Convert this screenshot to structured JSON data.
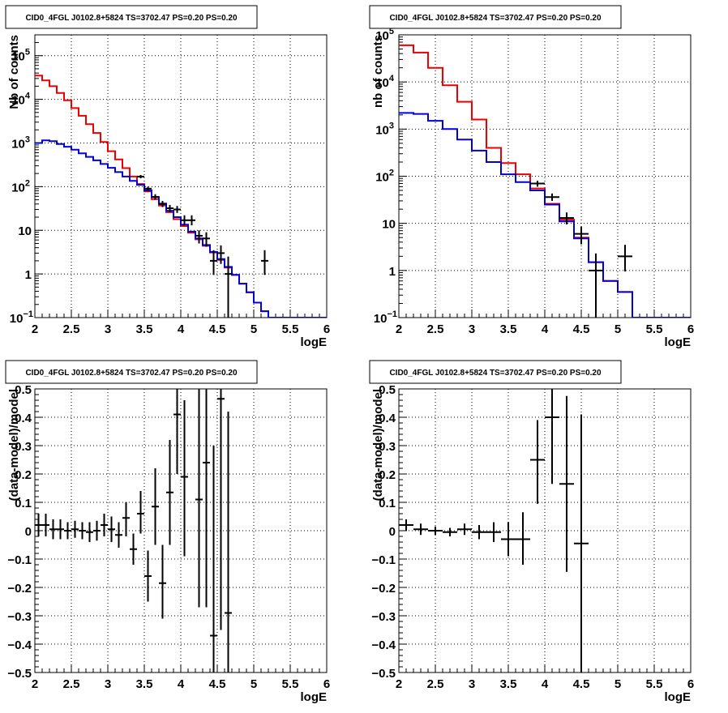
{
  "chart_data": [
    {
      "type": "line",
      "title": "CID0_4FGL J0102.8+5824 TS=3702.47 PS=0.20 PS=0.20",
      "xlabel": "logE",
      "ylabel": "Nb of counts",
      "xlim": [
        2,
        6
      ],
      "ylim": [
        0.1,
        300000
      ],
      "yscale": "log",
      "grid": true,
      "xticks": [
        "2",
        "2.5",
        "3",
        "3.5",
        "4",
        "4.5",
        "5",
        "5.5",
        "6"
      ],
      "yticks": [
        {
          "v": 0.1,
          "label": "10",
          "sup": "−1"
        },
        {
          "v": 1,
          "label": "1",
          "sup": ""
        },
        {
          "v": 10,
          "label": "10",
          "sup": ""
        },
        {
          "v": 100,
          "label": "10",
          "sup": "2"
        },
        {
          "v": 1000,
          "label": "10",
          "sup": "3"
        },
        {
          "v": 10000,
          "label": "10",
          "sup": "4"
        },
        {
          "v": 100000,
          "label": "10",
          "sup": "5"
        }
      ],
      "series": [
        {
          "style": "total",
          "color": "#ee0000",
          "edges": [
            2.0,
            2.1,
            2.2,
            2.3,
            2.4,
            2.5,
            2.6,
            2.7,
            2.8,
            2.9,
            3.0,
            3.1,
            3.2,
            3.3,
            3.4,
            3.5,
            3.6,
            3.7,
            3.8,
            3.9,
            4.0,
            4.1,
            4.2,
            4.3,
            4.4,
            4.5,
            4.6,
            4.7,
            4.8,
            4.9,
            5.0,
            5.1,
            5.2,
            5.3,
            5.4,
            5.5,
            5.6,
            5.7,
            5.8,
            5.9,
            6.0
          ],
          "values": [
            35000,
            27000,
            20000,
            14000,
            9500,
            6300,
            4200,
            2700,
            1700,
            1050,
            650,
            420,
            265,
            170,
            115,
            78,
            52,
            37,
            26,
            18,
            12.5,
            8.8,
            6.2,
            4.4,
            3.1,
            2.1,
            1.4,
            0.95,
            0.6,
            0.38,
            0.22,
            0.14,
            0.1,
            0.1,
            0.1,
            0.1,
            0.1,
            0.1,
            0.1,
            0.1
          ]
        },
        {
          "style": "component",
          "color": "#0000dd",
          "edges": [
            2.0,
            2.1,
            2.2,
            2.3,
            2.4,
            2.5,
            2.6,
            2.7,
            2.8,
            2.9,
            3.0,
            3.1,
            3.2,
            3.3,
            3.4,
            3.5,
            3.6,
            3.7,
            3.8,
            3.9,
            4.0,
            4.1,
            4.2,
            4.3,
            4.4,
            4.5,
            4.6,
            4.7,
            4.8,
            4.9,
            5.0,
            5.1,
            5.2,
            5.3,
            5.4,
            5.5,
            5.6,
            5.7,
            5.8,
            5.9,
            6.0
          ],
          "values": [
            1000,
            1150,
            1100,
            950,
            820,
            700,
            580,
            480,
            400,
            330,
            270,
            215,
            170,
            135,
            110,
            82,
            58,
            41,
            28,
            20,
            13.5,
            9.3,
            6.5,
            4.6,
            3.2,
            2.2,
            1.45,
            0.95,
            0.6,
            0.38,
            0.22,
            0.14,
            0.1,
            0.1,
            0.1,
            0.1,
            0.1,
            0.1,
            0.1,
            0.1
          ]
        }
      ],
      "points": [
        {
          "x": 3.45,
          "y": 170,
          "xerr": 0.05,
          "ylo": 155,
          "yhi": 185
        },
        {
          "x": 3.55,
          "y": 90,
          "xerr": 0.05,
          "ylo": 80,
          "yhi": 100
        },
        {
          "x": 3.65,
          "y": 58,
          "xerr": 0.05,
          "ylo": 50,
          "yhi": 67
        },
        {
          "x": 3.75,
          "y": 40,
          "xerr": 0.05,
          "ylo": 34,
          "yhi": 47
        },
        {
          "x": 3.85,
          "y": 32,
          "xerr": 0.05,
          "ylo": 26,
          "yhi": 38
        },
        {
          "x": 3.95,
          "y": 30,
          "xerr": 0.05,
          "ylo": 25,
          "yhi": 36
        },
        {
          "x": 4.05,
          "y": 17,
          "xerr": 0.05,
          "ylo": 13,
          "yhi": 22
        },
        {
          "x": 4.15,
          "y": 17,
          "xerr": 0.05,
          "ylo": 13,
          "yhi": 22
        },
        {
          "x": 4.25,
          "y": 7.5,
          "xerr": 0.05,
          "ylo": 5,
          "yhi": 10
        },
        {
          "x": 4.35,
          "y": 6.5,
          "xerr": 0.05,
          "ylo": 4.2,
          "yhi": 9
        },
        {
          "x": 4.45,
          "y": 2,
          "xerr": 0.05,
          "ylo": 0.95,
          "yhi": 3.5
        },
        {
          "x": 4.55,
          "y": 3,
          "xerr": 0.05,
          "ylo": 1.7,
          "yhi": 4.5
        },
        {
          "x": 4.65,
          "y": 1,
          "xerr": 0.05,
          "ylo": 0.1,
          "yhi": 2.5
        },
        {
          "x": 5.15,
          "y": 2,
          "xerr": 0.05,
          "ylo": 0.95,
          "yhi": 3.5
        }
      ]
    },
    {
      "type": "line",
      "title": "CID0_4FGL J0102.8+5824 TS=3702.47 PS=0.20 PS=0.20",
      "xlabel": "logE",
      "ylabel": "nb of counts",
      "xlim": [
        2,
        6
      ],
      "ylim": [
        0.1,
        100000
      ],
      "yscale": "log",
      "grid": true,
      "xticks": [
        "2",
        "2.5",
        "3",
        "3.5",
        "4",
        "4.5",
        "5",
        "5.5",
        "6"
      ],
      "yticks": [
        {
          "v": 0.1,
          "label": "10",
          "sup": "−1"
        },
        {
          "v": 1,
          "label": "1",
          "sup": ""
        },
        {
          "v": 10,
          "label": "10",
          "sup": ""
        },
        {
          "v": 100,
          "label": "10",
          "sup": "2"
        },
        {
          "v": 1000,
          "label": "10",
          "sup": "3"
        },
        {
          "v": 10000,
          "label": "10",
          "sup": "4"
        },
        {
          "v": 100000,
          "label": "10",
          "sup": "5"
        }
      ],
      "series": [
        {
          "style": "total",
          "color": "#ee0000",
          "edges": [
            2.0,
            2.2,
            2.4,
            2.6,
            2.8,
            3.0,
            3.2,
            3.4,
            3.6,
            3.8,
            4.0,
            4.2,
            4.4,
            4.6,
            4.8,
            5.0,
            5.2,
            5.4,
            5.6,
            5.8,
            6.0
          ],
          "values": [
            60000,
            42000,
            20000,
            8500,
            3800,
            1600,
            400,
            190,
            110,
            55,
            26,
            12,
            5,
            1.5,
            0.6,
            0.35,
            0.1,
            0.1,
            0.1,
            0.1
          ]
        },
        {
          "style": "component",
          "color": "#0000dd",
          "edges": [
            2.0,
            2.2,
            2.4,
            2.6,
            2.8,
            3.0,
            3.2,
            3.4,
            3.6,
            3.8,
            4.0,
            4.2,
            4.4,
            4.6,
            4.8,
            5.0,
            5.2,
            5.4,
            5.6,
            5.8,
            6.0
          ],
          "values": [
            2200,
            2100,
            1500,
            1000,
            600,
            350,
            200,
            110,
            75,
            50,
            25,
            11,
            4.8,
            1.5,
            0.6,
            0.35,
            0.1,
            0.1,
            0.1,
            0.1
          ]
        }
      ],
      "points": [
        {
          "x": 3.9,
          "y": 70,
          "xerr": 0.1,
          "ylo": 60,
          "yhi": 80
        },
        {
          "x": 4.1,
          "y": 36,
          "xerr": 0.1,
          "ylo": 30,
          "yhi": 43
        },
        {
          "x": 4.3,
          "y": 13,
          "xerr": 0.1,
          "ylo": 9.5,
          "yhi": 17
        },
        {
          "x": 4.5,
          "y": 6,
          "xerr": 0.1,
          "ylo": 3.6,
          "yhi": 8.5
        },
        {
          "x": 4.7,
          "y": 1,
          "xerr": 0.1,
          "ylo": 0.1,
          "yhi": 2.3
        },
        {
          "x": 5.1,
          "y": 2,
          "xerr": 0.1,
          "ylo": 0.95,
          "yhi": 3.5
        }
      ]
    },
    {
      "type": "scatter",
      "title": "CID0_4FGL J0102.8+5824 TS=3702.47 PS=0.20 PS=0.20",
      "xlabel": "logE",
      "ylabel": "(data-model)/model",
      "xlim": [
        2,
        6
      ],
      "ylim": [
        -0.5,
        0.5
      ],
      "yscale": "linear",
      "grid": true,
      "xticks": [
        "2",
        "2.5",
        "3",
        "3.5",
        "4",
        "4.5",
        "5",
        "5.5",
        "6"
      ],
      "yticks": [
        {
          "v": -0.5,
          "label": "−0.5",
          "sup": ""
        },
        {
          "v": -0.4,
          "label": "−0.4",
          "sup": ""
        },
        {
          "v": -0.3,
          "label": "−0.3",
          "sup": ""
        },
        {
          "v": -0.2,
          "label": "−0.2",
          "sup": ""
        },
        {
          "v": -0.1,
          "label": "−0.1",
          "sup": ""
        },
        {
          "v": 0,
          "label": "0",
          "sup": ""
        },
        {
          "v": 0.1,
          "label": "0.1",
          "sup": ""
        },
        {
          "v": 0.2,
          "label": "0.2",
          "sup": ""
        },
        {
          "v": 0.3,
          "label": "0.3",
          "sup": ""
        },
        {
          "v": 0.4,
          "label": "0.4",
          "sup": ""
        },
        {
          "v": 0.5,
          "label": "0.5",
          "sup": ""
        }
      ],
      "series": [],
      "points": [
        {
          "x": 2.05,
          "y": 0.02,
          "xerr": 0.05,
          "ylo": -0.02,
          "yhi": 0.06
        },
        {
          "x": 2.15,
          "y": 0.02,
          "xerr": 0.05,
          "ylo": -0.02,
          "yhi": 0.06
        },
        {
          "x": 2.25,
          "y": 0.005,
          "xerr": 0.05,
          "ylo": -0.03,
          "yhi": 0.04
        },
        {
          "x": 2.35,
          "y": 0.005,
          "xerr": 0.05,
          "ylo": -0.03,
          "yhi": 0.04
        },
        {
          "x": 2.45,
          "y": 0,
          "xerr": 0.05,
          "ylo": -0.03,
          "yhi": 0.03
        },
        {
          "x": 2.55,
          "y": 0.005,
          "xerr": 0.05,
          "ylo": -0.025,
          "yhi": 0.035
        },
        {
          "x": 2.65,
          "y": 0,
          "xerr": 0.05,
          "ylo": -0.03,
          "yhi": 0.03
        },
        {
          "x": 2.75,
          "y": -0.005,
          "xerr": 0.05,
          "ylo": -0.04,
          "yhi": 0.03
        },
        {
          "x": 2.85,
          "y": 0,
          "xerr": 0.05,
          "ylo": -0.035,
          "yhi": 0.035
        },
        {
          "x": 2.95,
          "y": 0.02,
          "xerr": 0.05,
          "ylo": -0.02,
          "yhi": 0.06
        },
        {
          "x": 3.05,
          "y": 0.005,
          "xerr": 0.05,
          "ylo": -0.04,
          "yhi": 0.05
        },
        {
          "x": 3.15,
          "y": -0.015,
          "xerr": 0.05,
          "ylo": -0.06,
          "yhi": 0.03
        },
        {
          "x": 3.25,
          "y": 0.045,
          "xerr": 0.05,
          "ylo": -0.02,
          "yhi": 0.1
        },
        {
          "x": 3.35,
          "y": -0.065,
          "xerr": 0.05,
          "ylo": -0.12,
          "yhi": -0.01
        },
        {
          "x": 3.45,
          "y": 0.06,
          "xerr": 0.05,
          "ylo": -0.01,
          "yhi": 0.14
        },
        {
          "x": 3.55,
          "y": -0.16,
          "xerr": 0.05,
          "ylo": -0.25,
          "yhi": -0.07
        },
        {
          "x": 3.65,
          "y": 0.085,
          "xerr": 0.05,
          "ylo": -0.05,
          "yhi": 0.22
        },
        {
          "x": 3.75,
          "y": -0.185,
          "xerr": 0.05,
          "ylo": -0.31,
          "yhi": -0.05
        },
        {
          "x": 3.85,
          "y": 0.135,
          "xerr": 0.05,
          "ylo": -0.05,
          "yhi": 0.32
        },
        {
          "x": 3.95,
          "y": 0.41,
          "xerr": 0.05,
          "ylo": 0.2,
          "yhi": 0.62
        },
        {
          "x": 4.05,
          "y": 0.19,
          "xerr": 0.05,
          "ylo": -0.09,
          "yhi": 0.46
        },
        {
          "x": 4.25,
          "y": 0.11,
          "xerr": 0.05,
          "ylo": -0.27,
          "yhi": 0.5
        },
        {
          "x": 4.35,
          "y": 0.24,
          "xerr": 0.05,
          "ylo": -0.27,
          "yhi": 0.75
        },
        {
          "x": 4.45,
          "y": -0.37,
          "xerr": 0.05,
          "ylo": -1.0,
          "yhi": 0.3
        },
        {
          "x": 4.55,
          "y": 0.465,
          "xerr": 0.05,
          "ylo": -0.35,
          "yhi": 1.2
        },
        {
          "x": 4.65,
          "y": -0.29,
          "xerr": 0.05,
          "ylo": -1.0,
          "yhi": 0.42
        }
      ]
    },
    {
      "type": "scatter",
      "title": "CID0_4FGL J0102.8+5824 TS=3702.47 PS=0.20 PS=0.20",
      "xlabel": "logE",
      "ylabel": "(data-model)/model",
      "xlim": [
        2,
        6
      ],
      "ylim": [
        -0.5,
        0.5
      ],
      "yscale": "linear",
      "grid": true,
      "xticks": [
        "2",
        "2.5",
        "3",
        "3.5",
        "4",
        "4.5",
        "5",
        "5.5",
        "6"
      ],
      "yticks": [
        {
          "v": -0.5,
          "label": "−0.5",
          "sup": ""
        },
        {
          "v": -0.4,
          "label": "−0.4",
          "sup": ""
        },
        {
          "v": -0.3,
          "label": "−0.3",
          "sup": ""
        },
        {
          "v": -0.2,
          "label": "−0.2",
          "sup": ""
        },
        {
          "v": -0.1,
          "label": "−0.1",
          "sup": ""
        },
        {
          "v": 0,
          "label": "0",
          "sup": ""
        },
        {
          "v": 0.1,
          "label": "0.1",
          "sup": ""
        },
        {
          "v": 0.2,
          "label": "0.2",
          "sup": ""
        },
        {
          "v": 0.3,
          "label": "0.3",
          "sup": ""
        },
        {
          "v": 0.4,
          "label": "0.4",
          "sup": ""
        },
        {
          "v": 0.5,
          "label": "0.5",
          "sup": ""
        }
      ],
      "series": [],
      "points": [
        {
          "x": 2.1,
          "y": 0.02,
          "xerr": 0.1,
          "ylo": 0.0,
          "yhi": 0.04
        },
        {
          "x": 2.3,
          "y": 0.005,
          "xerr": 0.1,
          "ylo": -0.015,
          "yhi": 0.025
        },
        {
          "x": 2.5,
          "y": 0.0,
          "xerr": 0.1,
          "ylo": -0.015,
          "yhi": 0.015
        },
        {
          "x": 2.7,
          "y": -0.005,
          "xerr": 0.1,
          "ylo": -0.02,
          "yhi": 0.01
        },
        {
          "x": 2.9,
          "y": 0.005,
          "xerr": 0.1,
          "ylo": -0.015,
          "yhi": 0.025
        },
        {
          "x": 3.1,
          "y": -0.005,
          "xerr": 0.1,
          "ylo": -0.03,
          "yhi": 0.02
        },
        {
          "x": 3.3,
          "y": -0.005,
          "xerr": 0.1,
          "ylo": -0.04,
          "yhi": 0.03
        },
        {
          "x": 3.5,
          "y": -0.03,
          "xerr": 0.1,
          "ylo": -0.09,
          "yhi": 0.03
        },
        {
          "x": 3.7,
          "y": -0.03,
          "xerr": 0.1,
          "ylo": -0.12,
          "yhi": 0.065
        },
        {
          "x": 3.9,
          "y": 0.25,
          "xerr": 0.1,
          "ylo": 0.095,
          "yhi": 0.39
        },
        {
          "x": 4.1,
          "y": 0.4,
          "xerr": 0.1,
          "ylo": 0.165,
          "yhi": 0.5
        },
        {
          "x": 4.3,
          "y": 0.165,
          "xerr": 0.1,
          "ylo": -0.145,
          "yhi": 0.475
        },
        {
          "x": 4.5,
          "y": -0.045,
          "xerr": 0.1,
          "ylo": -0.5,
          "yhi": 0.41
        }
      ]
    }
  ]
}
